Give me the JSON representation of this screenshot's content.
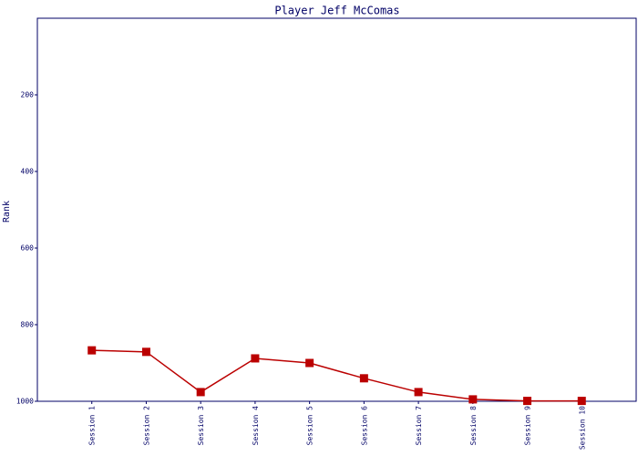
{
  "chart_data": {
    "type": "line",
    "title": "Player Jeff McComas",
    "ylabel": "Rank",
    "categories": [
      "Session 1",
      "Session 2",
      "Session 3",
      "Session 4",
      "Session 5",
      "Session 6",
      "Session 7",
      "Session 8",
      "Session 9",
      "Session 10"
    ],
    "series": [
      {
        "name": "Rank",
        "color": "#bb0000",
        "values": [
          867,
          871,
          976,
          888,
          900,
          940,
          976,
          995,
          999,
          999
        ]
      }
    ],
    "ylim": [
      1000,
      0
    ],
    "yticks": [
      200,
      400,
      600,
      800,
      1000
    ],
    "axis_color": "#000066",
    "marker": "square"
  }
}
